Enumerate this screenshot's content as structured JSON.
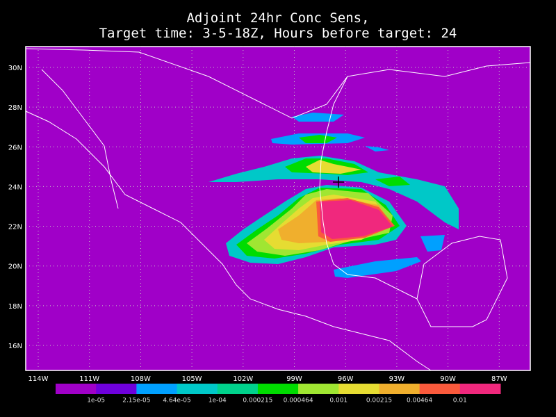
{
  "title": {
    "line1": "Adjoint 24hr Conc Sens,",
    "line2": "Target time: 3-5-18Z, Hours before target: 24"
  },
  "map": {
    "lat_labels": [
      "30N",
      "28N",
      "26N",
      "24N",
      "22N",
      "20N",
      "18N",
      "16N"
    ],
    "lon_labels": [
      "114W",
      "111W",
      "108W",
      "105W",
      "102W",
      "99W",
      "96W",
      "93W",
      "90W",
      "87W"
    ],
    "background": "#a000c8"
  },
  "colorbar": {
    "colors": [
      "#a000c8",
      "#6e00dc",
      "#00a0ff",
      "#00c8c8",
      "#00d28c",
      "#00dc00",
      "#a0e632",
      "#e6dc32",
      "#f0af2d",
      "#fa5a3c",
      "#f0287d"
    ],
    "labels": [
      "1e-05",
      "2.15e-05",
      "4.64e-05",
      "1e-04",
      "0.000215",
      "0.000464",
      "0.001",
      "0.00215",
      "0.00464",
      "0.01"
    ]
  }
}
